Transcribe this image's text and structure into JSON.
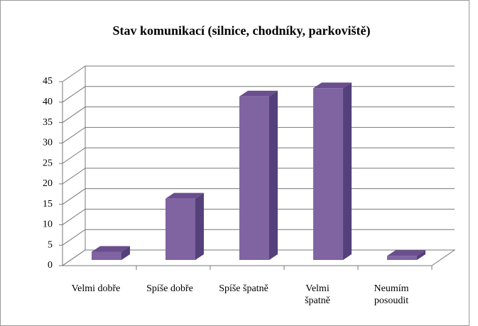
{
  "chart_data": {
    "type": "bar3d",
    "title": "Stav komunikací (silnice, chodníky, parkoviště)",
    "categories": [
      "Velmi dobře",
      "Spíše dobře",
      "Spíše špatně",
      "Velmi\nšpatně",
      "Neumím\nposoudit"
    ],
    "values": [
      2,
      15,
      40,
      42,
      1
    ],
    "color": "#8064a2",
    "ylim": [
      0,
      45
    ],
    "yticks": [
      0,
      5,
      10,
      15,
      20,
      25,
      30,
      35,
      40,
      45
    ],
    "grid": true
  }
}
